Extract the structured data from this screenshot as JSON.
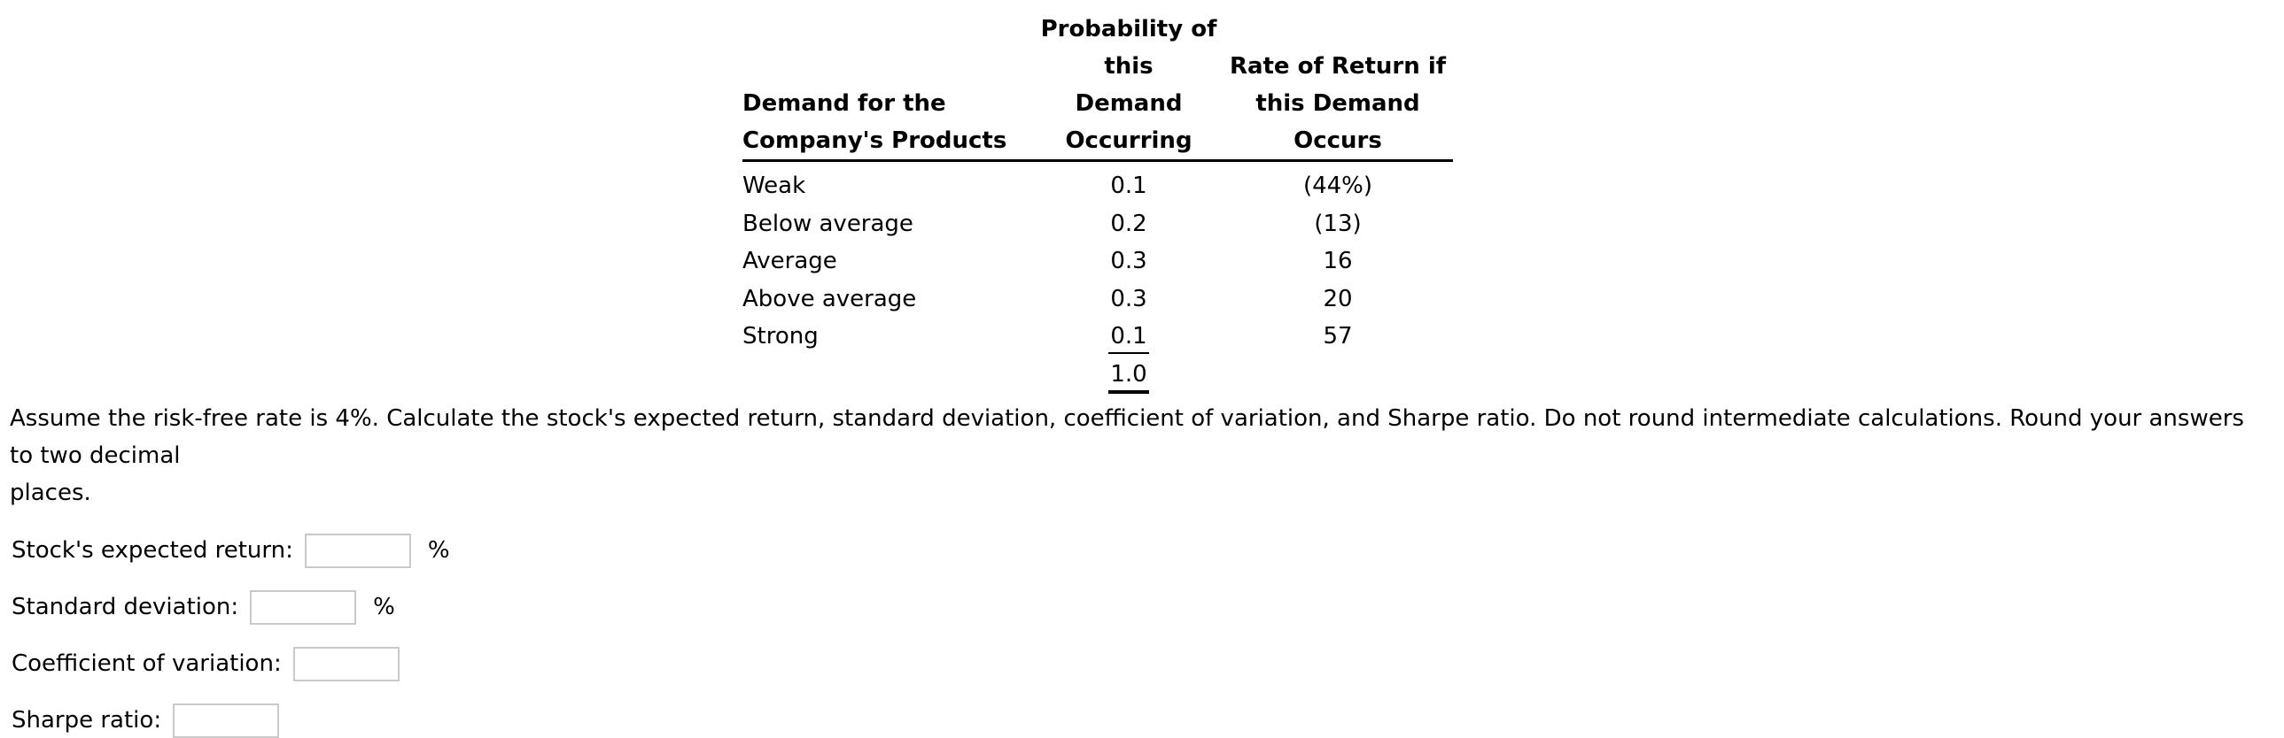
{
  "table": {
    "headers": [
      {
        "line1": "Demand for the",
        "line2": "Company's Products"
      },
      {
        "line1": "Probability of this",
        "line2": "Demand Occurring"
      },
      {
        "line1": "Rate of Return if",
        "line2": "this Demand Occurs"
      }
    ],
    "rows": [
      {
        "demand": "Weak",
        "probability": "0.1",
        "rate": "(44%)"
      },
      {
        "demand": "Below average",
        "probability": "0.2",
        "rate": "(13)"
      },
      {
        "demand": "Average",
        "probability": "0.3",
        "rate": "16"
      },
      {
        "demand": "Above average",
        "probability": "0.3",
        "rate": "20"
      },
      {
        "demand": "Strong",
        "probability": "0.1",
        "rate": "57"
      }
    ],
    "total_probability": "1.0"
  },
  "question": {
    "line1": "Assume the risk-free rate is 4%. Calculate the stock's expected return, standard deviation, coefficient of variation, and Sharpe ratio. Do not round intermediate calculations. Round your answers to two decimal",
    "line2": "places."
  },
  "answers": [
    {
      "label": "Stock's expected return:",
      "value": "",
      "suffix": "%"
    },
    {
      "label": "Standard deviation:",
      "value": "",
      "suffix": "%"
    },
    {
      "label": "Coefficient of variation:",
      "value": "",
      "suffix": ""
    },
    {
      "label": "Sharpe ratio:",
      "value": "",
      "suffix": ""
    }
  ],
  "colors": {
    "text": "#000000",
    "input_border": "#c9c9c9",
    "background": "#ffffff"
  }
}
